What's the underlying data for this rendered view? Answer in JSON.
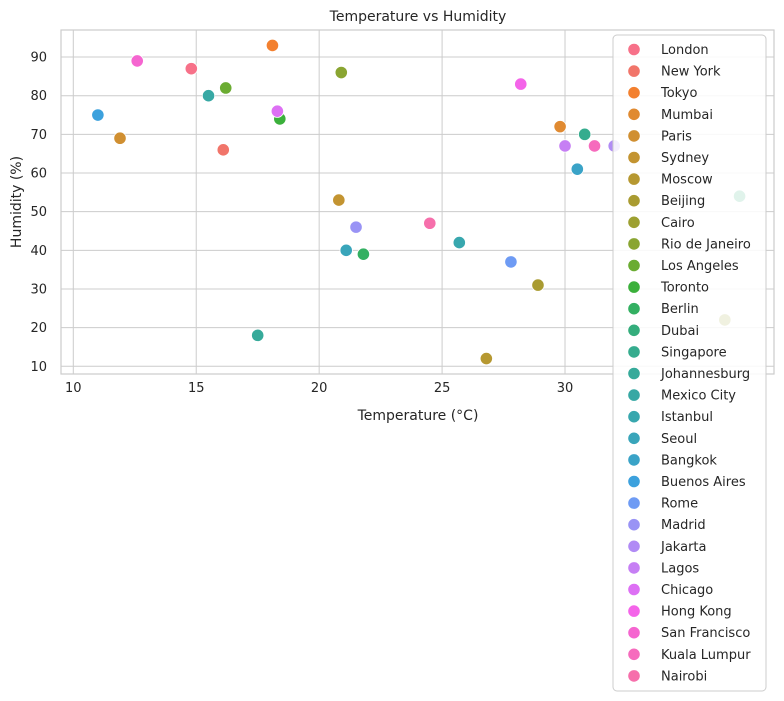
{
  "chart_data": {
    "type": "scatter",
    "title": "Temperature vs Humidity",
    "xlabel": "Temperature (°C)",
    "ylabel": "Humidity (%)",
    "xlim": [
      9.5,
      38.5
    ],
    "ylim": [
      8,
      97
    ],
    "xticks": [
      10,
      15,
      20,
      25,
      30
    ],
    "yticks": [
      10,
      20,
      30,
      40,
      50,
      60,
      70,
      80,
      90
    ],
    "grid": true,
    "legend_position": "upper-right",
    "series": [
      {
        "name": "London",
        "color": "#f77189",
        "x": [
          14.8
        ],
        "y": [
          87
        ]
      },
      {
        "name": "New York",
        "color": "#f1756a",
        "x": [
          16.1
        ],
        "y": [
          66
        ]
      },
      {
        "name": "Tokyo",
        "color": "#f3802f",
        "x": [
          18.1
        ],
        "y": [
          93
        ]
      },
      {
        "name": "Mumbai",
        "color": "#e08a31",
        "x": [
          29.8
        ],
        "y": [
          72
        ]
      },
      {
        "name": "Paris",
        "color": "#d08f31",
        "x": [
          11.9
        ],
        "y": [
          69
        ]
      },
      {
        "name": "Sydney",
        "color": "#c39431",
        "x": [
          20.8
        ],
        "y": [
          53
        ]
      },
      {
        "name": "Moscow",
        "color": "#b69831",
        "x": [
          26.8
        ],
        "y": [
          12
        ]
      },
      {
        "name": "Beijing",
        "color": "#a99b31",
        "x": [
          28.9
        ],
        "y": [
          31
        ]
      },
      {
        "name": "Cairo",
        "color": "#9da031",
        "x": [
          36.5
        ],
        "y": [
          22
        ]
      },
      {
        "name": "Rio de Janeiro",
        "color": "#8aa532",
        "x": [
          20.9
        ],
        "y": [
          86
        ]
      },
      {
        "name": "Los Angeles",
        "color": "#6bac32",
        "x": [
          16.2
        ],
        "y": [
          82
        ]
      },
      {
        "name": "Toronto",
        "color": "#3bb03b",
        "x": [
          18.4
        ],
        "y": [
          74
        ]
      },
      {
        "name": "Berlin",
        "color": "#33b062",
        "x": [
          21.8
        ],
        "y": [
          39
        ]
      },
      {
        "name": "Dubai",
        "color": "#34ad7c",
        "x": [
          37.1
        ],
        "y": [
          54
        ]
      },
      {
        "name": "Singapore",
        "color": "#35ac8e",
        "x": [
          30.8
        ],
        "y": [
          70
        ]
      },
      {
        "name": "Johannesburg",
        "color": "#36aa9a",
        "x": [
          17.5
        ],
        "y": [
          18
        ]
      },
      {
        "name": "Mexico City",
        "color": "#37a8a4",
        "x": [
          15.5
        ],
        "y": [
          80
        ]
      },
      {
        "name": "Istanbul",
        "color": "#38a7ae",
        "x": [
          25.7
        ],
        "y": [
          42
        ]
      },
      {
        "name": "Seoul",
        "color": "#39a5ba",
        "x": [
          21.1
        ],
        "y": [
          40
        ]
      },
      {
        "name": "Bangkok",
        "color": "#3aa3c7",
        "x": [
          30.5
        ],
        "y": [
          61
        ]
      },
      {
        "name": "Buenos Aires",
        "color": "#3ca1dd",
        "x": [
          11.0
        ],
        "y": [
          75
        ]
      },
      {
        "name": "Rome",
        "color": "#6e9bf4",
        "x": [
          27.8
        ],
        "y": [
          37
        ]
      },
      {
        "name": "Madrid",
        "color": "#9993f5",
        "x": [
          21.5
        ],
        "y": [
          46
        ]
      },
      {
        "name": "Jakarta",
        "color": "#b18bf5",
        "x": [
          32.0
        ],
        "y": [
          67
        ]
      },
      {
        "name": "Lagos",
        "color": "#c67ff4",
        "x": [
          30.0
        ],
        "y": [
          67
        ]
      },
      {
        "name": "Chicago",
        "color": "#dd70f4",
        "x": [
          18.3
        ],
        "y": [
          76
        ]
      },
      {
        "name": "Hong Kong",
        "color": "#f464e9",
        "x": [
          28.2
        ],
        "y": [
          83
        ]
      },
      {
        "name": "San Francisco",
        "color": "#f565d0",
        "x": [
          12.6
        ],
        "y": [
          89
        ]
      },
      {
        "name": "Kuala Lumpur",
        "color": "#f66bbd",
        "x": [
          31.2
        ],
        "y": [
          67
        ]
      },
      {
        "name": "Nairobi",
        "color": "#f66fab",
        "x": [
          24.5
        ],
        "y": [
          47
        ]
      }
    ]
  }
}
